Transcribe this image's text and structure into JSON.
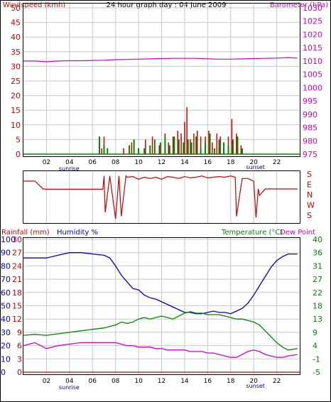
{
  "top": {
    "title": "24 hour graph day : 04 June 2009",
    "left_axis_label": "Windspeed (kmh)",
    "right_axis_label": "Barometer (hPa)",
    "left_ticks": [
      0,
      5,
      10,
      15,
      20,
      25,
      30,
      35,
      40,
      45,
      50
    ],
    "right_ticks": [
      975,
      980,
      985,
      990,
      995,
      1000,
      1005,
      1010,
      1015,
      1020,
      1025,
      1030
    ],
    "x_ticks": [
      "02",
      "04",
      "06",
      "08",
      "10",
      "12",
      "14",
      "16",
      "18",
      "20",
      "22"
    ],
    "sunrise_label": "sunrise",
    "sunset_label": "sunset"
  },
  "direction": {
    "labels": [
      "S",
      "E",
      "N",
      "W",
      "S"
    ]
  },
  "bottom": {
    "label_rain": "Rainfall (mm)",
    "label_humidity": "Humidity %",
    "label_temp": "Temperature (°C)",
    "label_dew": "Dew Point",
    "rain_ticks": [
      0,
      3,
      6,
      9,
      12,
      15,
      18,
      21,
      24,
      27,
      30
    ],
    "humidity_ticks": [
      0,
      10,
      20,
      30,
      40,
      50,
      60,
      70,
      80,
      90,
      100
    ],
    "temp_ticks": [
      "-5",
      "-1",
      "4",
      "9",
      "13",
      "18",
      "22",
      "27",
      "31",
      "36",
      "40"
    ],
    "x_ticks": [
      "02",
      "04",
      "06",
      "08",
      "10",
      "12",
      "14",
      "16",
      "18",
      "20",
      "22"
    ],
    "sunrise_label": "sunrise",
    "sunset_label": "sunset"
  },
  "colors": {
    "wind": "#cc0000",
    "wind_avg": "#008800",
    "gust_detail": "#0000cc",
    "baro": "#cc00cc",
    "humidity": "#0000cc",
    "temp": "#008800",
    "dew": "#cc00cc",
    "rain": "#cc0000",
    "grid": "#c8c8c8",
    "blue_text": "#000099"
  },
  "chart_data": [
    {
      "type": "line",
      "title": "24 hour graph day : 04 June 2009",
      "x_unit": "hour",
      "xlim": [
        0,
        24
      ],
      "series": [
        {
          "name": "Barometer (hPa)",
          "axis": "right",
          "ylim": [
            975,
            1030
          ],
          "x": [
            0,
            1,
            2,
            3,
            4,
            5,
            6,
            7,
            8,
            9,
            10,
            11,
            12,
            13,
            14,
            15,
            16,
            17,
            18,
            19,
            20,
            21,
            22,
            23,
            23.8
          ],
          "values": [
            1010,
            1010,
            1009.7,
            1010,
            1010.1,
            1010.1,
            1010.2,
            1010.3,
            1010.5,
            1010.6,
            1010.7,
            1010.8,
            1010.9,
            1011,
            1011,
            1011,
            1010.8,
            1010.7,
            1010.7,
            1010.8,
            1010.9,
            1011,
            1011.1,
            1011.3,
            1011.1
          ]
        }
      ]
    },
    {
      "type": "bar",
      "x_unit": "hour",
      "xlim": [
        0,
        24
      ],
      "ylim": [
        0,
        50
      ],
      "series": [
        {
          "name": "Windspeed (kmh)",
          "axis": "left",
          "x": [
            6.8,
            7.0,
            8.7,
            9.4,
            10.0,
            10.6,
            11.2,
            11.8,
            12.3,
            12.6,
            13.0,
            13.4,
            13.7,
            14.0,
            14.2,
            14.5,
            14.8,
            15.1,
            15.4,
            15.8,
            16.1,
            16.4,
            16.8,
            17.1,
            17.4,
            17.8,
            18.1,
            18.5,
            18.9
          ],
          "values": [
            2,
            6,
            2,
            4,
            2,
            5,
            6,
            3,
            7,
            4,
            6,
            8,
            7,
            11,
            16,
            5,
            7,
            8,
            6,
            6,
            8,
            4,
            7,
            6,
            4,
            6,
            12,
            7,
            3
          ]
        },
        {
          "name": "wind_average",
          "axis": "left",
          "x": [
            6.6,
            7.0,
            7.3,
            9.2,
            9.6,
            10.0,
            10.5,
            11.0,
            11.4,
            11.9,
            12.3,
            12.7,
            13.1,
            13.5,
            13.9,
            14.3,
            14.6,
            15.0,
            15.4,
            15.8,
            16.2,
            16.6,
            17.0,
            17.4,
            17.8,
            18.2,
            18.6,
            19.0
          ],
          "values": [
            6,
            3,
            2,
            3,
            5,
            2,
            2,
            3,
            5,
            4,
            6,
            3,
            6,
            5,
            4,
            5,
            4,
            6,
            2,
            4,
            7,
            2,
            5,
            4,
            3,
            5,
            6,
            2
          ]
        }
      ]
    },
    {
      "type": "line",
      "x_unit": "hour",
      "xlim": [
        0,
        24
      ],
      "ylim": [
        0,
        360
      ],
      "series": [
        {
          "name": "wind_direction",
          "x": [
            0,
            1,
            1.7,
            2,
            3,
            4,
            5,
            6,
            6.5,
            6.9,
            7.0,
            7.1,
            7.5,
            8,
            8.3,
            8.5,
            8.9,
            9,
            9.5,
            10,
            10.5,
            11,
            11.5,
            12,
            12.5,
            13,
            13.5,
            14,
            14.5,
            15,
            15.5,
            16,
            16.5,
            17,
            17.5,
            18,
            18.4,
            18.5,
            19,
            19.5,
            20,
            20.2,
            20.4,
            20.5,
            21,
            22,
            23,
            23.8
          ],
          "values": [
            60,
            60,
            120,
            122,
            122,
            122,
            122,
            122,
            122,
            122,
            20,
            300,
            20,
            350,
            20,
            330,
            20,
            30,
            25,
            45,
            30,
            40,
            30,
            45,
            25,
            30,
            40,
            25,
            35,
            30,
            20,
            35,
            30,
            25,
            30,
            20,
            30,
            330,
            40,
            40,
            60,
            340,
            120,
            170,
            120,
            120,
            120,
            120
          ]
        }
      ]
    },
    {
      "type": "line",
      "x_unit": "hour",
      "xlim": [
        0,
        24
      ],
      "series": [
        {
          "name": "Humidity %",
          "axis": "left",
          "ylim": [
            0,
            100
          ],
          "x": [
            0,
            1,
            2,
            3,
            4,
            5,
            6,
            7,
            7.5,
            8,
            8.5,
            9,
            9.5,
            10,
            10.5,
            11,
            11.5,
            12,
            12.5,
            13,
            13.5,
            14,
            14.5,
            15,
            15.5,
            16,
            16.5,
            17,
            17.5,
            18,
            18.5,
            19,
            19.5,
            20,
            20.5,
            21,
            21.5,
            22,
            22.5,
            23,
            23.8
          ],
          "values": [
            86,
            86,
            86,
            88,
            90,
            90,
            89,
            88,
            86,
            80,
            73,
            68,
            63,
            62,
            58,
            56,
            55,
            53,
            51,
            49,
            47,
            45,
            45,
            44,
            44,
            45,
            46,
            45,
            45,
            44,
            46,
            48,
            52,
            58,
            65,
            72,
            79,
            84,
            87,
            89,
            89
          ]
        },
        {
          "name": "Temperature (°C)",
          "axis": "right",
          "ylim": [
            -5,
            40
          ],
          "x": [
            0,
            1,
            2,
            3,
            4,
            5,
            6,
            7,
            7.5,
            8,
            8.5,
            9,
            9.5,
            10,
            10.5,
            11,
            11.5,
            12,
            12.5,
            13,
            13.5,
            14,
            14.5,
            15,
            15.5,
            16,
            16.5,
            17,
            17.5,
            18,
            18.5,
            19,
            19.5,
            20,
            20.5,
            21,
            21.5,
            22,
            22.5,
            23,
            23.8
          ],
          "values": [
            7.5,
            7.8,
            7.5,
            8,
            8.5,
            9,
            9.5,
            10,
            10.5,
            11,
            12,
            11.5,
            12,
            13,
            13.5,
            13,
            13.5,
            14,
            13.5,
            13,
            14,
            15,
            15.5,
            15,
            15,
            14.5,
            14.5,
            14.5,
            14,
            13.5,
            13,
            13,
            12.5,
            12,
            11,
            9,
            7,
            5,
            3.5,
            2.5,
            3
          ]
        },
        {
          "name": "Dew Point",
          "axis": "right",
          "ylim": [
            -5,
            40
          ],
          "x": [
            0,
            1,
            2,
            3,
            4,
            5,
            6,
            7,
            7.5,
            8,
            8.5,
            9,
            9.5,
            10,
            10.5,
            11,
            11.5,
            12,
            12.5,
            13,
            13.5,
            14,
            14.5,
            15,
            15.5,
            16,
            16.5,
            17,
            17.5,
            18,
            18.5,
            19,
            19.5,
            20,
            20.5,
            21,
            21.5,
            22,
            22.5,
            23,
            23.8
          ],
          "values": [
            4,
            5,
            3,
            4,
            4.5,
            5,
            5,
            5,
            5,
            5,
            4.5,
            4,
            4,
            3.5,
            3.5,
            3.5,
            3,
            3,
            2.5,
            2.5,
            2.5,
            2.5,
            2,
            2,
            2,
            1.5,
            1.5,
            1,
            0.5,
            0,
            0,
            1,
            2,
            2.5,
            2,
            1,
            0.5,
            0,
            0,
            0.5,
            1
          ]
        },
        {
          "name": "Rainfall (mm)",
          "axis": "left2",
          "ylim": [
            0,
            30
          ],
          "x": [
            0,
            23.8
          ],
          "values": [
            0,
            0
          ]
        }
      ]
    }
  ]
}
